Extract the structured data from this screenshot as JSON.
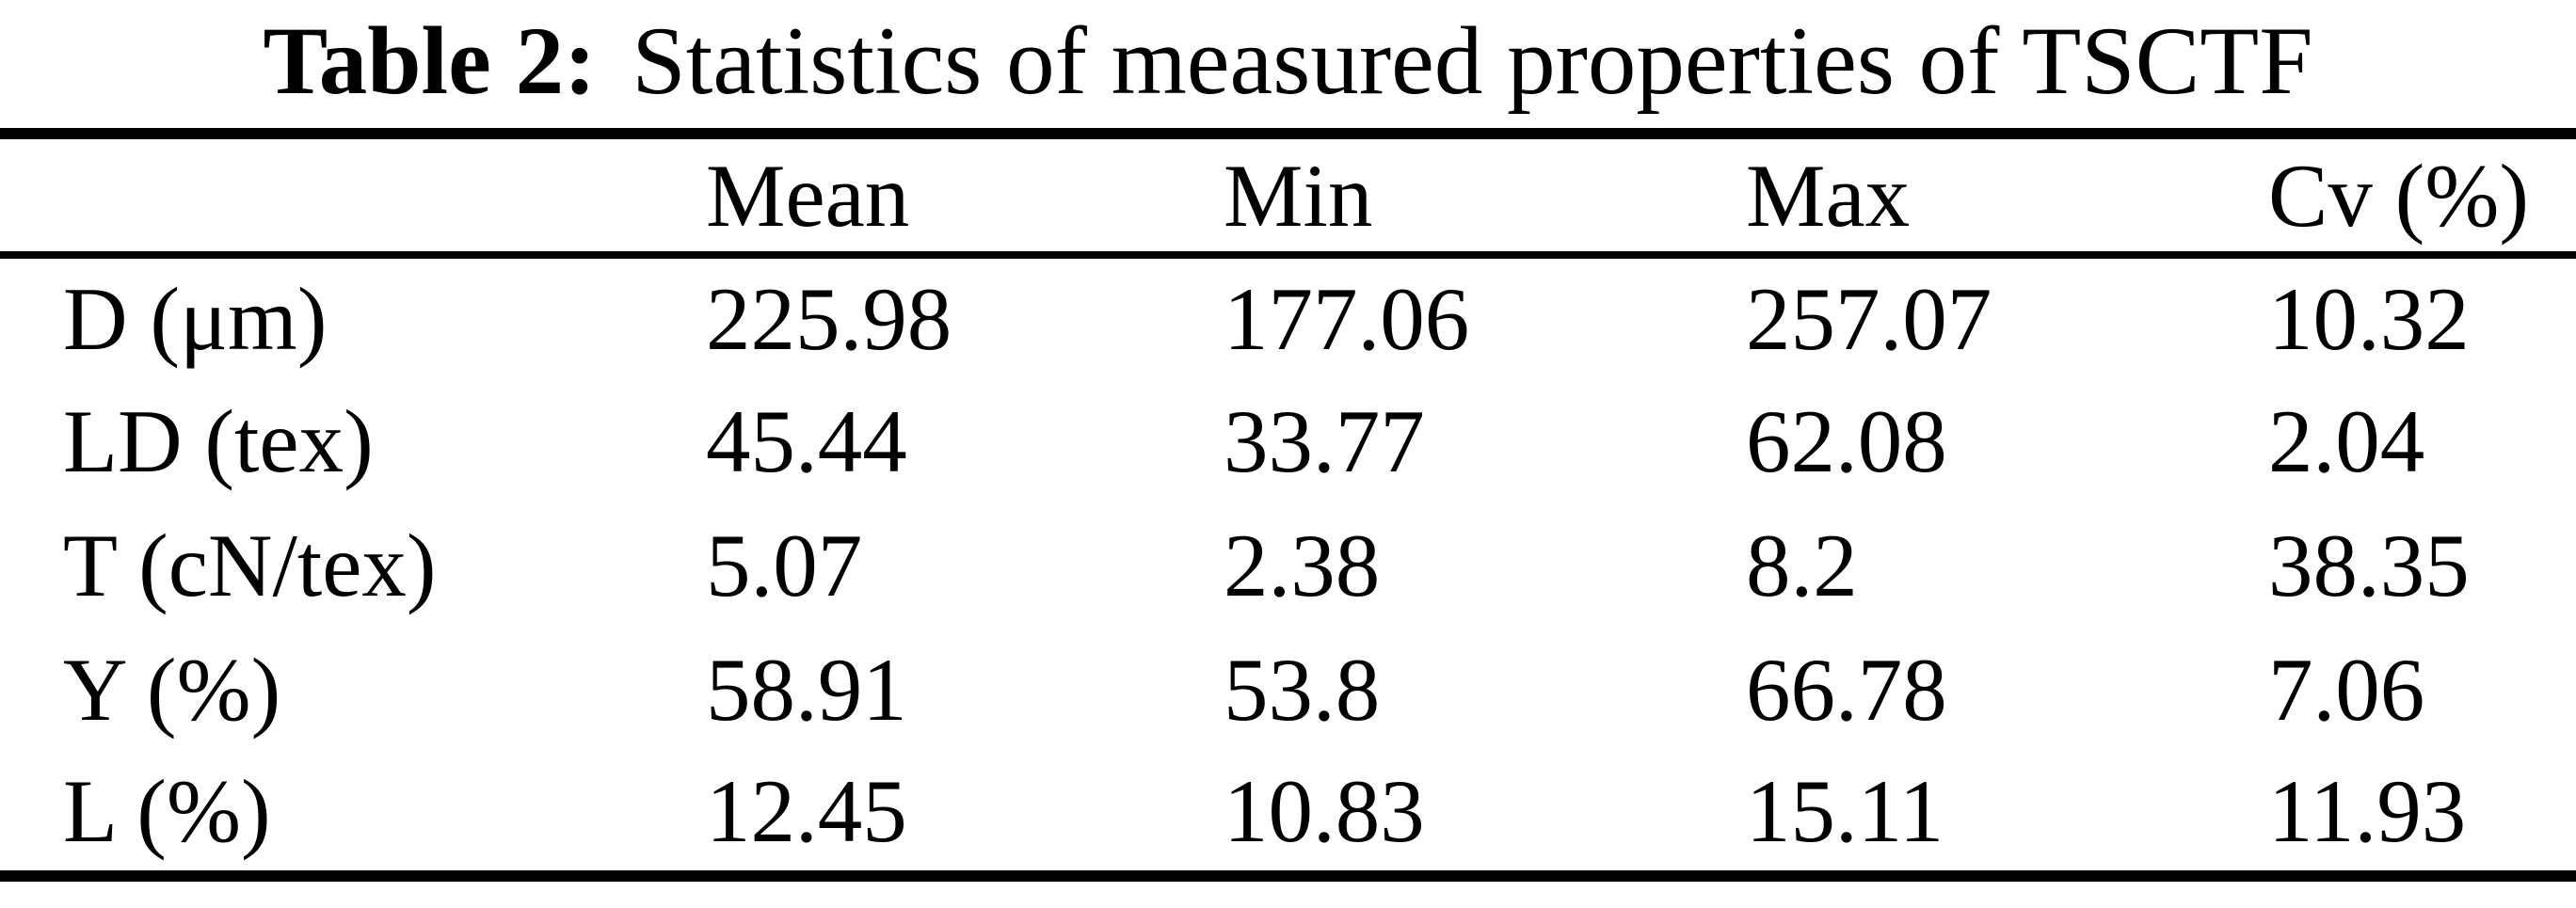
{
  "caption": {
    "label": "Table 2:",
    "text": "Statistics of measured properties of TSCTF"
  },
  "table": {
    "columns": [
      "",
      "Mean",
      "Min",
      "Max",
      "Cv (%)"
    ],
    "rows": [
      {
        "label": "D (μm)",
        "values": [
          "225.98",
          "177.06",
          "257.07",
          "10.32"
        ]
      },
      {
        "label": "LD (tex)",
        "values": [
          "45.44",
          "33.77",
          "62.08",
          "2.04"
        ]
      },
      {
        "label": "T (cN/tex)",
        "values": [
          "5.07",
          "2.38",
          "8.2",
          "38.35"
        ]
      },
      {
        "label": "Y (%)",
        "values": [
          "58.91",
          "53.8",
          "66.78",
          "7.06"
        ]
      },
      {
        "label": "L (%)",
        "values": [
          "12.45",
          "10.83",
          "15.11",
          "11.93"
        ]
      }
    ]
  }
}
